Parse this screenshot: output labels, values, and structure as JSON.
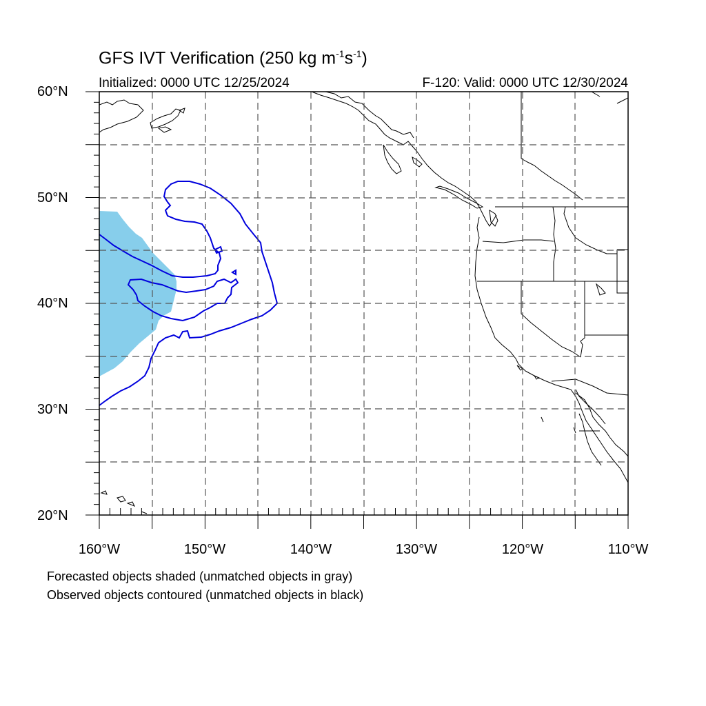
{
  "header": {
    "title_main": "GFS IVT Verification (250 kg m",
    "title_exp1": "-1",
    "title_mid": "s",
    "title_exp2": "-1",
    "title_end": ")",
    "initialized": "Initialized: 0000 UTC 12/25/2024",
    "valid": "F-120: Valid: 0000 UTC 12/30/2024"
  },
  "axes": {
    "lat_labels": [
      "60°N",
      "50°N",
      "40°N",
      "30°N",
      "20°N"
    ],
    "lon_labels": [
      "160°W",
      "150°W",
      "140°W",
      "130°W",
      "120°W",
      "110°W"
    ],
    "lat_range": [
      20,
      60
    ],
    "lon_range": [
      -160,
      -110
    ],
    "grid": true,
    "grid_style": "dashed"
  },
  "legend": {
    "line1": "Forecasted objects shaded (unmatched objects in gray)",
    "line2": "Observed objects contoured (unmatched objects in black)"
  },
  "colors": {
    "forecast_fill": "#87ceeb",
    "observed_contour": "#0000dd",
    "coastline": "#000000",
    "grid": "#555555"
  }
}
